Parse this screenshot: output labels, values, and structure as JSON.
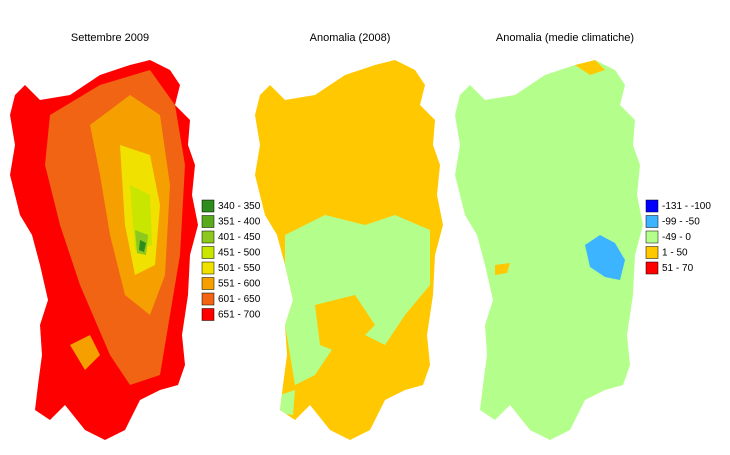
{
  "panels": [
    {
      "title": "Settembre 2009",
      "legend": [
        {
          "label": "340 - 350",
          "color": "#2e8b1e"
        },
        {
          "label": "351 - 400",
          "color": "#5aaa1e"
        },
        {
          "label": "401 - 450",
          "color": "#8cc81e"
        },
        {
          "label": "451 - 500",
          "color": "#c8e600"
        },
        {
          "label": "501 - 550",
          "color": "#f0e100"
        },
        {
          "label": "551 - 600",
          "color": "#f5a000"
        },
        {
          "label": "601 - 650",
          "color": "#f06414"
        },
        {
          "label": "651 - 700",
          "color": "#ff0000"
        }
      ]
    },
    {
      "title": "Anomalia (2008)"
    },
    {
      "title": "Anomalia (medie climatiche)",
      "legend": [
        {
          "label": "-131 - -100",
          "color": "#0000ff"
        },
        {
          "label": "-99 - -50",
          "color": "#3cb4ff"
        },
        {
          "label": "-49 - 0",
          "color": "#b4ff8c"
        },
        {
          "label": "1 - 50",
          "color": "#ffc800"
        },
        {
          "label": "51 - 70",
          "color": "#ff0000"
        }
      ]
    }
  ]
}
